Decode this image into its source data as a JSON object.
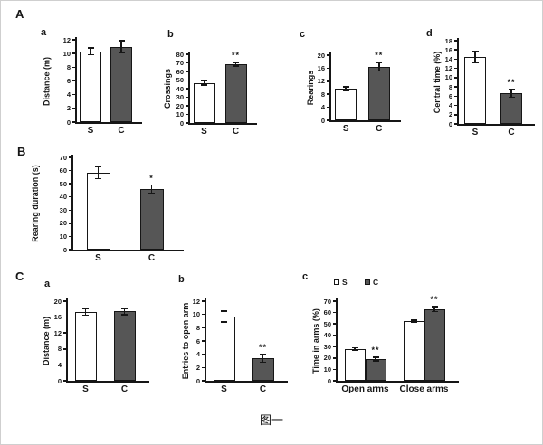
{
  "figure": {
    "caption": "图一",
    "panels": [
      {
        "label": "A"
      },
      {
        "label": "B"
      },
      {
        "label": "C"
      }
    ]
  },
  "colors": {
    "s_fill": "#ffffff",
    "c_fill": "#565656",
    "axis": "#161616"
  },
  "chart_data": [
    {
      "id": "A-a",
      "panel": "A",
      "sub": "a",
      "type": "bar",
      "title": "",
      "ylabel": "Distance (m)",
      "ylim": [
        0,
        12
      ],
      "ystep": 2,
      "grid": false,
      "categories": [
        "S",
        "C"
      ],
      "values": [
        10.3,
        11.0
      ],
      "errors": [
        0.5,
        0.9
      ],
      "sig": [
        "",
        ""
      ]
    },
    {
      "id": "A-b",
      "panel": "A",
      "sub": "b",
      "type": "bar",
      "title": "",
      "ylabel": "Crossings",
      "ylim": [
        0,
        80
      ],
      "ystep": 10,
      "grid": false,
      "categories": [
        "S",
        "C"
      ],
      "values": [
        46.5,
        68.5
      ],
      "errors": [
        2.5,
        2
      ],
      "sig": [
        "",
        "**"
      ]
    },
    {
      "id": "A-c",
      "panel": "A",
      "sub": "c",
      "type": "bar",
      "title": "",
      "ylabel": "Rearings",
      "ylim": [
        0,
        20
      ],
      "ystep": 4,
      "grid": false,
      "categories": [
        "S",
        "C"
      ],
      "values": [
        9.7,
        16.4
      ],
      "errors": [
        0.6,
        1.3
      ],
      "sig": [
        "",
        "**"
      ]
    },
    {
      "id": "A-d",
      "panel": "A",
      "sub": "d",
      "type": "bar",
      "title": "",
      "ylabel": "Central time (%)",
      "ylim": [
        0,
        18
      ],
      "ystep": 2,
      "grid": false,
      "categories": [
        "S",
        "C"
      ],
      "values": [
        14.5,
        6.6
      ],
      "errors": [
        1.2,
        0.8
      ],
      "sig": [
        "",
        "**"
      ]
    },
    {
      "id": "B",
      "panel": "B",
      "sub": "",
      "type": "bar",
      "title": "",
      "ylabel": "Rearing duration (s)",
      "ylim": [
        0,
        70
      ],
      "ystep": 10,
      "grid": false,
      "categories": [
        "S",
        "C"
      ],
      "values": [
        58.5,
        46
      ],
      "errors": [
        4.5,
        3
      ],
      "sig": [
        "",
        "*"
      ]
    },
    {
      "id": "C-a",
      "panel": "C",
      "sub": "a",
      "type": "bar",
      "title": "",
      "ylabel": "Distance (m)",
      "ylim": [
        0,
        20
      ],
      "ystep": 4,
      "grid": false,
      "categories": [
        "S",
        "C"
      ],
      "values": [
        17.3,
        17.4
      ],
      "errors": [
        0.8,
        0.8
      ],
      "sig": [
        "",
        ""
      ]
    },
    {
      "id": "C-b",
      "panel": "C",
      "sub": "b",
      "type": "bar",
      "title": "",
      "ylabel": "Entries to open arm",
      "ylim": [
        0,
        12
      ],
      "ystep": 2,
      "grid": false,
      "categories": [
        "S",
        "C"
      ],
      "values": [
        9.7,
        3.4
      ],
      "errors": [
        0.8,
        0.6
      ],
      "sig": [
        "",
        "**"
      ]
    },
    {
      "id": "C-c",
      "panel": "C",
      "sub": "c",
      "type": "grouped_bar",
      "title": "",
      "ylabel": "Time in arms (%)",
      "ylim": [
        0,
        70
      ],
      "ystep": 10,
      "grid": false,
      "legend": {
        "position": "top",
        "entries": [
          "S",
          "C"
        ]
      },
      "categories": [
        "Open arms",
        "Close arms"
      ],
      "series": [
        {
          "name": "S",
          "values": [
            28,
            52.5
          ],
          "errors": [
            1,
            1
          ],
          "sig": [
            "",
            ""
          ]
        },
        {
          "name": "C",
          "values": [
            19,
            63
          ],
          "errors": [
            1.5,
            2
          ],
          "sig": [
            "**",
            "**"
          ]
        }
      ]
    }
  ]
}
